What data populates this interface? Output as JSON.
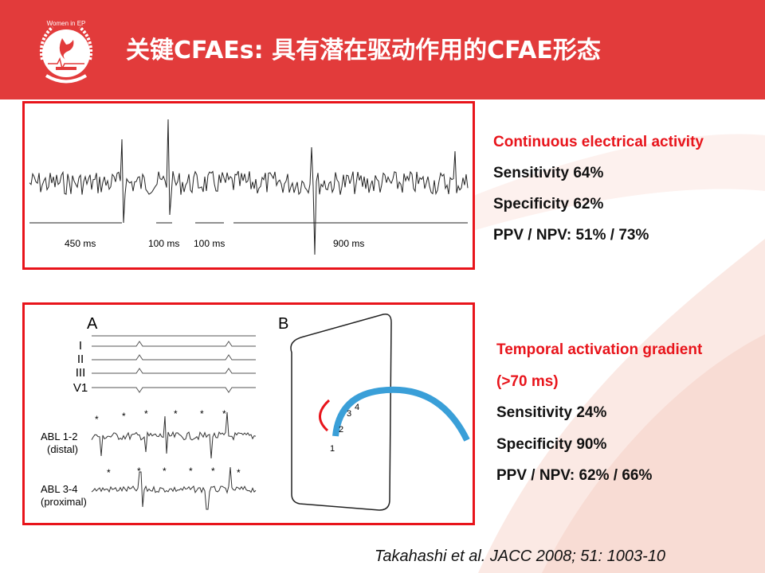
{
  "header": {
    "title": "关键CFAEs: 具有潜在驱动作用的CFAE形态",
    "logo_text": "Women in EP",
    "background_color": "#e23b3b"
  },
  "panel1": {
    "intervals": [
      "450 ms",
      "100 ms",
      "100 ms",
      "900 ms"
    ],
    "heading": "Continuous electrical activity",
    "lines": [
      "Sensitivity 64%",
      "Specificity 62%",
      "PPV / NPV: 51%  / 73%"
    ]
  },
  "panel2": {
    "label_a": "A",
    "label_b": "B",
    "leads": [
      "I",
      "II",
      "III",
      "V1"
    ],
    "abl1": [
      "ABL 1-2",
      "(distal)"
    ],
    "abl2": [
      "ABL 3-4",
      "(proximal)"
    ],
    "electrodes": [
      "1",
      "2",
      "3",
      "4"
    ],
    "heading": [
      "Temporal activation gradient",
      "(>70 ms)"
    ],
    "lines": [
      "Sensitivity 24%",
      "Specificity 90%",
      "PPV / NPV: 62%  / 66%"
    ]
  },
  "citation": "Takahashi et al. JACC 2008; 51: 1003-10",
  "colors": {
    "accent": "#e8141b",
    "catheter": "#3a9fd8"
  }
}
